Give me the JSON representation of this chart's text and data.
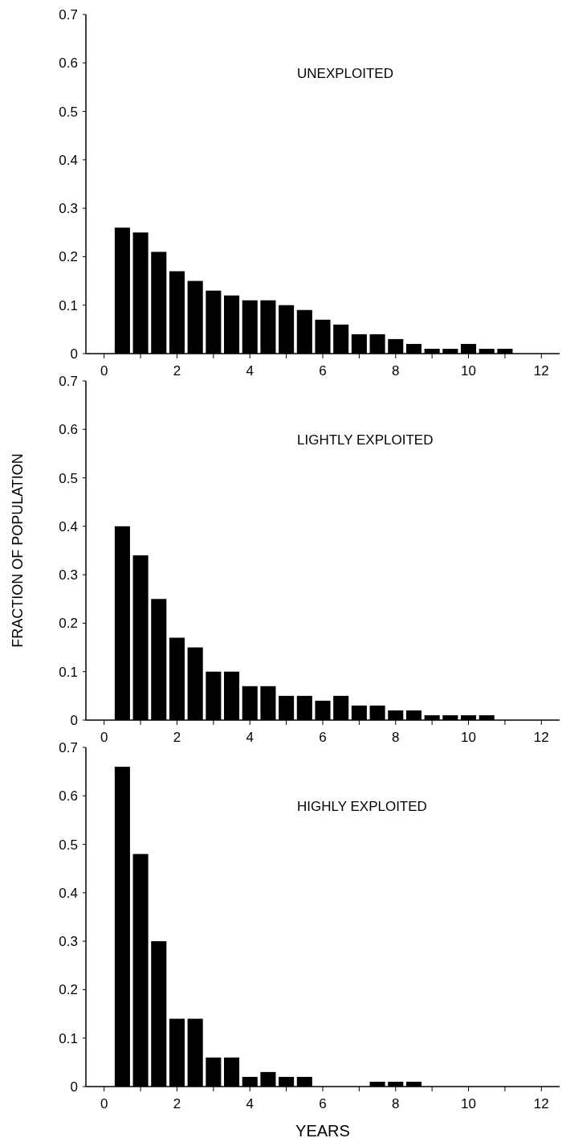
{
  "chart_data": [
    {
      "type": "bar",
      "title": "UNEXPLOITED",
      "x": [
        0.5,
        1,
        1.5,
        2,
        2.5,
        3,
        3.5,
        4,
        4.5,
        5,
        5.5,
        6,
        6.5,
        7,
        7.5,
        8,
        8.5,
        9,
        9.5,
        10,
        10.5,
        11
      ],
      "values": [
        0.26,
        0.25,
        0.21,
        0.17,
        0.15,
        0.13,
        0.12,
        0.11,
        0.11,
        0.1,
        0.09,
        0.07,
        0.06,
        0.04,
        0.04,
        0.03,
        0.02,
        0.01,
        0.01,
        0.02,
        0.01,
        0.01
      ],
      "color": "#000000",
      "xlim": [
        -0.5,
        12.5
      ],
      "xticks": [
        0,
        {
          "value": 1,
          "label": null
        },
        2,
        {
          "value": 3,
          "label": null
        },
        4,
        {
          "value": 5,
          "label": null
        },
        6,
        {
          "value": 7,
          "label": null
        },
        8,
        {
          "value": 9,
          "label": null
        },
        10,
        {
          "value": 11,
          "label": null
        },
        12
      ],
      "ylim": [
        0,
        0.7
      ],
      "yticks": [
        0,
        0.1,
        0.2,
        0.3,
        0.4,
        0.5,
        0.6,
        0.7
      ]
    },
    {
      "type": "bar",
      "title": "LIGHTLY EXPLOITED",
      "ylabel": "FRACTION OF POPULATION",
      "x": [
        0.5,
        1,
        1.5,
        2,
        2.5,
        3,
        3.5,
        4,
        4.5,
        5,
        5.5,
        6,
        6.5,
        7,
        7.5,
        8,
        8.5,
        9,
        9.5,
        10,
        10.5
      ],
      "values": [
        0.4,
        0.34,
        0.25,
        0.17,
        0.15,
        0.1,
        0.1,
        0.07,
        0.07,
        0.05,
        0.05,
        0.04,
        0.05,
        0.03,
        0.03,
        0.02,
        0.02,
        0.01,
        0.01,
        0.01,
        0.01
      ],
      "color": "#000000",
      "xlim": [
        -0.5,
        12.5
      ],
      "xticks": [
        0,
        {
          "value": 1,
          "label": null
        },
        2,
        {
          "value": 3,
          "label": null
        },
        4,
        {
          "value": 5,
          "label": null
        },
        6,
        {
          "value": 7,
          "label": null
        },
        8,
        {
          "value": 9,
          "label": null
        },
        10,
        {
          "value": 11,
          "label": null
        },
        12
      ],
      "ylim": [
        0,
        0.7
      ],
      "yticks": [
        0,
        0.1,
        0.2,
        0.3,
        0.4,
        0.5,
        0.6,
        0.7
      ]
    },
    {
      "type": "bar",
      "title": "HIGHLY EXPLOITED",
      "xlabel": "YEARS",
      "x": [
        0.5,
        1,
        1.5,
        2,
        2.5,
        3,
        3.5,
        4,
        4.5,
        5,
        5.5,
        6,
        6.5,
        7,
        7.5,
        8,
        8.5
      ],
      "values": [
        0.66,
        0.48,
        0.3,
        0.14,
        0.14,
        0.06,
        0.06,
        0.02,
        0.03,
        0.02,
        0.02,
        0,
        0,
        0,
        0.01,
        0.01,
        0.01
      ],
      "color": "#000000",
      "xlim": [
        -0.5,
        12.5
      ],
      "xticks": [
        0,
        {
          "value": 1,
          "label": null
        },
        2,
        {
          "value": 3,
          "label": null
        },
        4,
        {
          "value": 5,
          "label": null
        },
        6,
        {
          "value": 7,
          "label": null
        },
        8,
        {
          "value": 9,
          "label": null
        },
        10,
        {
          "value": 11,
          "label": null
        },
        12
      ],
      "ylim": [
        0,
        0.7
      ],
      "yticks": [
        0,
        0.1,
        0.2,
        0.3,
        0.4,
        0.5,
        0.6,
        0.7
      ]
    }
  ]
}
